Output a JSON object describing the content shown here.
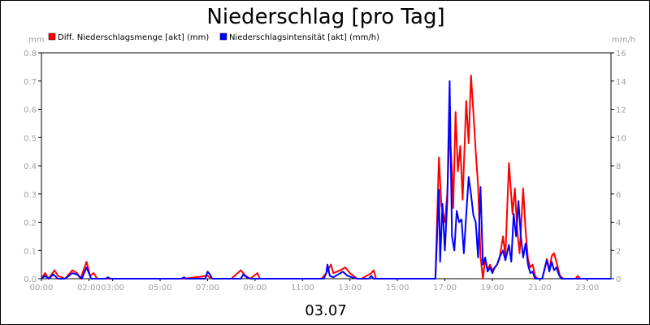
{
  "chart_data": {
    "type": "line",
    "title": "Niederschlag [pro Tag]",
    "footer_label": "03.07",
    "left_unit": "mm",
    "right_unit": "mm/h",
    "left_ylim": [
      0,
      0.8
    ],
    "right_ylim": [
      0,
      16
    ],
    "left_ticks": [
      "0.0",
      "0.1",
      "0.2",
      "0.3",
      "0.4",
      "0.5",
      "0.6",
      "0.7",
      "0.8"
    ],
    "right_ticks": [
      "0",
      "2",
      "4",
      "6",
      "8",
      "10",
      "12",
      "14",
      "16"
    ],
    "x_range_hours": [
      0,
      24
    ],
    "x_ticks": [
      {
        "h": 0,
        "label": "00:00"
      },
      {
        "h": 2,
        "label": "02:00"
      },
      {
        "h": 3,
        "label": "03:00"
      },
      {
        "h": 5,
        "label": "05:00"
      },
      {
        "h": 7,
        "label": "07:00"
      },
      {
        "h": 9,
        "label": "09:00"
      },
      {
        "h": 11,
        "label": "11:00"
      },
      {
        "h": 13,
        "label": "13:00"
      },
      {
        "h": 15,
        "label": "15:00"
      },
      {
        "h": 17,
        "label": "17:00"
      },
      {
        "h": 19,
        "label": "19:00"
      },
      {
        "h": 21,
        "label": "21:00"
      },
      {
        "h": 23,
        "label": "23:00"
      }
    ],
    "grid": false,
    "legend_position": "top-left",
    "series": [
      {
        "name": "Diff. Niederschlagsmenge [akt] (mm)",
        "axis": "left",
        "color": "#ff0000",
        "points": [
          [
            0.0,
            0
          ],
          [
            0.15,
            0.02
          ],
          [
            0.3,
            0
          ],
          [
            0.55,
            0.03
          ],
          [
            0.7,
            0.01
          ],
          [
            1.0,
            0
          ],
          [
            1.3,
            0.03
          ],
          [
            1.5,
            0.02
          ],
          [
            1.65,
            0
          ],
          [
            1.9,
            0.06
          ],
          [
            2.05,
            0.01
          ],
          [
            2.2,
            0.02
          ],
          [
            2.35,
            0
          ],
          [
            2.6,
            0
          ],
          [
            6.0,
            0
          ],
          [
            7.0,
            0.01
          ],
          [
            7.2,
            0
          ],
          [
            8.0,
            0
          ],
          [
            8.4,
            0.03
          ],
          [
            8.6,
            0.01
          ],
          [
            8.8,
            0
          ],
          [
            9.1,
            0.02
          ],
          [
            9.2,
            0
          ],
          [
            11.8,
            0
          ],
          [
            12.0,
            0.02
          ],
          [
            12.2,
            0.05
          ],
          [
            12.3,
            0.02
          ],
          [
            12.6,
            0.03
          ],
          [
            12.8,
            0.04
          ],
          [
            13.0,
            0.02
          ],
          [
            13.3,
            0
          ],
          [
            13.5,
            0
          ],
          [
            13.9,
            0.02
          ],
          [
            14.0,
            0.03
          ],
          [
            14.1,
            0
          ],
          [
            16.5,
            0
          ],
          [
            16.6,
            0
          ],
          [
            16.75,
            0.43
          ],
          [
            16.85,
            0.26
          ],
          [
            17.0,
            0.2
          ],
          [
            17.1,
            0.3
          ],
          [
            17.2,
            0.53
          ],
          [
            17.3,
            0.38
          ],
          [
            17.35,
            0.25
          ],
          [
            17.45,
            0.59
          ],
          [
            17.55,
            0.38
          ],
          [
            17.65,
            0.47
          ],
          [
            17.75,
            0.28
          ],
          [
            17.9,
            0.63
          ],
          [
            18.0,
            0.48
          ],
          [
            18.1,
            0.72
          ],
          [
            18.2,
            0.59
          ],
          [
            18.3,
            0.45
          ],
          [
            18.4,
            0.33
          ],
          [
            18.5,
            0.08
          ],
          [
            18.6,
            0
          ],
          [
            18.7,
            0.07
          ],
          [
            18.8,
            0.03
          ],
          [
            18.9,
            0.05
          ],
          [
            19.0,
            0.03
          ],
          [
            19.1,
            0.04
          ],
          [
            19.2,
            0.05
          ],
          [
            19.3,
            0.07
          ],
          [
            19.45,
            0.15
          ],
          [
            19.55,
            0.08
          ],
          [
            19.7,
            0.41
          ],
          [
            19.85,
            0.23
          ],
          [
            19.95,
            0.32
          ],
          [
            20.05,
            0.17
          ],
          [
            20.15,
            0.09
          ],
          [
            20.3,
            0.32
          ],
          [
            20.4,
            0.17
          ],
          [
            20.5,
            0.07
          ],
          [
            20.6,
            0.04
          ],
          [
            20.7,
            0.05
          ],
          [
            20.8,
            0.01
          ],
          [
            20.9,
            0
          ],
          [
            21.1,
            0
          ],
          [
            21.3,
            0.07
          ],
          [
            21.4,
            0.03
          ],
          [
            21.5,
            0.08
          ],
          [
            21.6,
            0.09
          ],
          [
            21.7,
            0.06
          ],
          [
            21.85,
            0.01
          ],
          [
            22.0,
            0
          ],
          [
            22.5,
            0
          ],
          [
            22.6,
            0.01
          ],
          [
            22.7,
            0
          ],
          [
            24.0,
            0
          ]
        ]
      },
      {
        "name": "Niederschlagsintensität [akt] (mm/h)",
        "axis": "right",
        "color": "#0000ff",
        "points": [
          [
            0.0,
            0
          ],
          [
            0.15,
            0.2
          ],
          [
            0.3,
            0
          ],
          [
            0.5,
            0.3
          ],
          [
            0.7,
            0
          ],
          [
            1.0,
            0
          ],
          [
            1.3,
            0.4
          ],
          [
            1.5,
            0.3
          ],
          [
            1.7,
            0
          ],
          [
            1.9,
            0.8
          ],
          [
            2.1,
            0
          ],
          [
            2.7,
            0
          ],
          [
            2.8,
            0.1
          ],
          [
            2.9,
            0
          ],
          [
            5.9,
            0
          ],
          [
            6.0,
            0.1
          ],
          [
            6.1,
            0
          ],
          [
            6.9,
            0
          ],
          [
            7.0,
            0.5
          ],
          [
            7.1,
            0.3
          ],
          [
            7.2,
            0
          ],
          [
            8.4,
            0
          ],
          [
            8.5,
            0.3
          ],
          [
            8.65,
            0.1
          ],
          [
            8.8,
            0
          ],
          [
            11.9,
            0
          ],
          [
            12.0,
            0.4
          ],
          [
            12.05,
            1.0
          ],
          [
            12.15,
            0.2
          ],
          [
            12.3,
            0.1
          ],
          [
            12.5,
            0.3
          ],
          [
            12.7,
            0.5
          ],
          [
            12.9,
            0.2
          ],
          [
            13.1,
            0.1
          ],
          [
            13.3,
            0
          ],
          [
            13.8,
            0
          ],
          [
            13.9,
            0.2
          ],
          [
            14.0,
            0
          ],
          [
            16.6,
            0
          ],
          [
            16.75,
            6.3
          ],
          [
            16.8,
            1.2
          ],
          [
            16.9,
            5.3
          ],
          [
            17.0,
            2.0
          ],
          [
            17.1,
            5.5
          ],
          [
            17.2,
            14.0
          ],
          [
            17.3,
            3.0
          ],
          [
            17.4,
            2.0
          ],
          [
            17.5,
            4.8
          ],
          [
            17.6,
            4.0
          ],
          [
            17.7,
            4.2
          ],
          [
            17.8,
            1.8
          ],
          [
            17.9,
            4.5
          ],
          [
            18.0,
            7.2
          ],
          [
            18.1,
            6.0
          ],
          [
            18.2,
            4.5
          ],
          [
            18.3,
            4.0
          ],
          [
            18.4,
            1.5
          ],
          [
            18.5,
            6.5
          ],
          [
            18.6,
            1.0
          ],
          [
            18.7,
            1.5
          ],
          [
            18.8,
            0.5
          ],
          [
            18.9,
            0.8
          ],
          [
            19.0,
            0.4
          ],
          [
            19.1,
            0.8
          ],
          [
            19.2,
            1.0
          ],
          [
            19.3,
            1.5
          ],
          [
            19.45,
            2.0
          ],
          [
            19.55,
            1.3
          ],
          [
            19.7,
            2.4
          ],
          [
            19.8,
            1.2
          ],
          [
            19.9,
            4.6
          ],
          [
            20.0,
            3.0
          ],
          [
            20.1,
            5.5
          ],
          [
            20.2,
            3.0
          ],
          [
            20.3,
            1.5
          ],
          [
            20.4,
            2.5
          ],
          [
            20.5,
            1.0
          ],
          [
            20.6,
            0.4
          ],
          [
            20.7,
            0.5
          ],
          [
            20.8,
            0
          ],
          [
            21.1,
            0
          ],
          [
            21.3,
            1.3
          ],
          [
            21.4,
            0.5
          ],
          [
            21.5,
            1.2
          ],
          [
            21.6,
            0.6
          ],
          [
            21.7,
            0.8
          ],
          [
            21.8,
            0.3
          ],
          [
            21.9,
            0
          ],
          [
            24.0,
            0
          ]
        ]
      }
    ]
  }
}
